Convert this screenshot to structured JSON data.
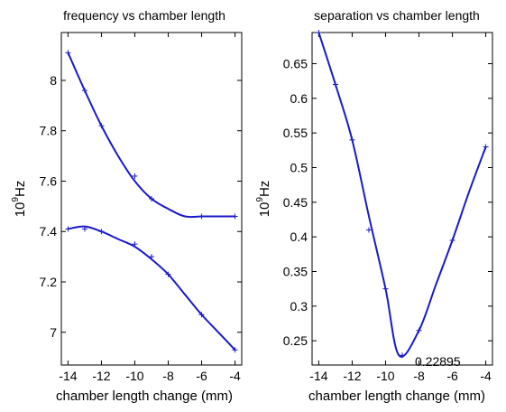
{
  "chart_data": [
    {
      "type": "line",
      "title": "frequency vs chamber length",
      "xlabel": "chamber length change (mm)",
      "ylabel_base": "10",
      "ylabel_exp": "9",
      "ylabel_unit": "Hz",
      "xlim": [
        -14.4,
        -3.6
      ],
      "ylim": [
        6.87,
        8.19
      ],
      "xticks": [
        -14,
        -12,
        -10,
        -8,
        -6,
        -4
      ],
      "yticks": [
        7,
        7.2,
        7.4,
        7.6,
        7.8,
        8
      ],
      "ytick_labels": [
        "7",
        "7.2",
        "7.4",
        "7.6",
        "7.8",
        "8"
      ],
      "grid": false,
      "line_color": "#1a1ac8",
      "series": [
        {
          "x": [
            -14,
            -13,
            -12,
            -11,
            -10,
            -9,
            -8,
            -7,
            -6,
            -5,
            -4
          ],
          "y": [
            8.11,
            7.96,
            7.82,
            7.7,
            7.6,
            7.53,
            7.49,
            7.46,
            7.46,
            7.46,
            7.46
          ],
          "markers_x": [
            -14,
            -13,
            -12,
            -10,
            -9,
            -6,
            -4
          ],
          "markers_y": [
            8.11,
            7.96,
            7.82,
            7.62,
            7.53,
            7.46,
            7.46
          ]
        },
        {
          "x": [
            -14,
            -13,
            -12,
            -11,
            -10,
            -9,
            -8,
            -7,
            -6,
            -5,
            -4
          ],
          "y": [
            7.41,
            7.42,
            7.4,
            7.37,
            7.34,
            7.29,
            7.23,
            7.15,
            7.07,
            7.0,
            6.93
          ],
          "markers_x": [
            -14,
            -13,
            -12,
            -10,
            -9,
            -8,
            -6,
            -4
          ],
          "markers_y": [
            7.41,
            7.41,
            7.4,
            7.35,
            7.3,
            7.23,
            7.07,
            6.93
          ]
        }
      ]
    },
    {
      "type": "line",
      "title": "separation vs chamber length",
      "xlabel": "chamber length change (mm)",
      "ylabel_base": "10",
      "ylabel_exp": "9",
      "ylabel_unit": "Hz",
      "xlim": [
        -14.4,
        -3.6
      ],
      "ylim": [
        0.215,
        0.695
      ],
      "xticks": [
        -14,
        -12,
        -10,
        -8,
        -6,
        -4
      ],
      "yticks": [
        0.25,
        0.3,
        0.35,
        0.4,
        0.45,
        0.5,
        0.55,
        0.6,
        0.65
      ],
      "ytick_labels": [
        "0.25",
        "0.3",
        "0.35",
        "0.4",
        "0.45",
        "0.5",
        "0.55",
        "0.6",
        "0.65"
      ],
      "grid": false,
      "line_color": "#1a1ac8",
      "annotation": "0.22895",
      "series": [
        {
          "x": [
            -14,
            -13,
            -12,
            -11,
            -10,
            -9.2,
            -8,
            -7,
            -6,
            -5,
            -4
          ],
          "y": [
            0.695,
            0.62,
            0.54,
            0.43,
            0.325,
            0.229,
            0.265,
            0.33,
            0.395,
            0.465,
            0.53
          ],
          "markers_x": [
            -14,
            -13,
            -12,
            -11,
            -10,
            -9,
            -8,
            -6,
            -4
          ],
          "markers_y": [
            0.695,
            0.62,
            0.54,
            0.41,
            0.325,
            0.229,
            0.265,
            0.395,
            0.53
          ]
        }
      ]
    }
  ]
}
